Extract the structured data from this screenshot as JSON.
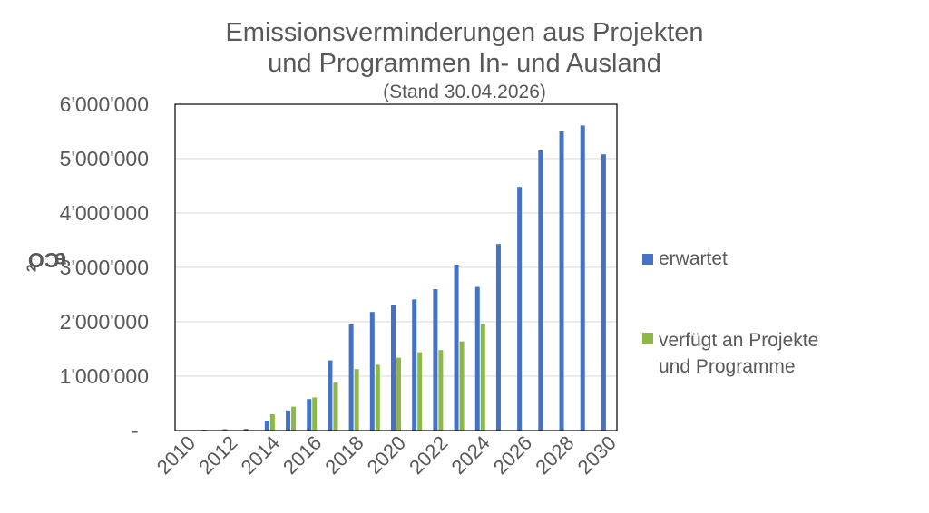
{
  "chart_data": {
    "type": "bar",
    "title_lines": [
      "Emissionsverminderungen aus Projekten",
      "und Programmen In- und Ausland"
    ],
    "subtitle": "(Stand 30.04.2026)",
    "ylabel": {
      "main": "tCO",
      "sub": "2",
      "end": "e"
    },
    "xlabel": "",
    "ylim": [
      0,
      6000000
    ],
    "yticks": [
      0,
      1000000,
      2000000,
      3000000,
      4000000,
      5000000,
      6000000
    ],
    "ytick_labels": [
      "-",
      "1'000'000",
      "2'000'000",
      "3'000'000",
      "4'000'000",
      "5'000'000",
      "6'000'000"
    ],
    "categories": [
      "2010",
      "2011",
      "2012",
      "2013",
      "2014",
      "2015",
      "2016",
      "2017",
      "2018",
      "2019",
      "2020",
      "2021",
      "2022",
      "2023",
      "2024",
      "2025",
      "2026",
      "2027",
      "2028",
      "2029",
      "2030"
    ],
    "xtick_labels": [
      "2010",
      "2012",
      "2014",
      "2016",
      "2018",
      "2020",
      "2022",
      "2024",
      "2026",
      "2028",
      "2030"
    ],
    "grid": true,
    "legend_position": "right",
    "series": [
      {
        "name": "erwartet",
        "color": "#4472C4",
        "values": [
          0,
          15000,
          25000,
          30000,
          180000,
          370000,
          580000,
          1290000,
          1950000,
          2180000,
          2310000,
          2410000,
          2600000,
          3050000,
          2640000,
          3430000,
          4480000,
          5150000,
          5500000,
          5610000,
          5080000
        ]
      },
      {
        "name": "verfügt an Projekte und Programme",
        "name_lines": [
          "verfügt an Projekte",
          "und Programme"
        ],
        "color": "#8DB849",
        "values": [
          0,
          0,
          0,
          0,
          300000,
          440000,
          610000,
          880000,
          1130000,
          1210000,
          1340000,
          1440000,
          1480000,
          1640000,
          1960000,
          0,
          0,
          0,
          0,
          0,
          0
        ]
      }
    ]
  }
}
